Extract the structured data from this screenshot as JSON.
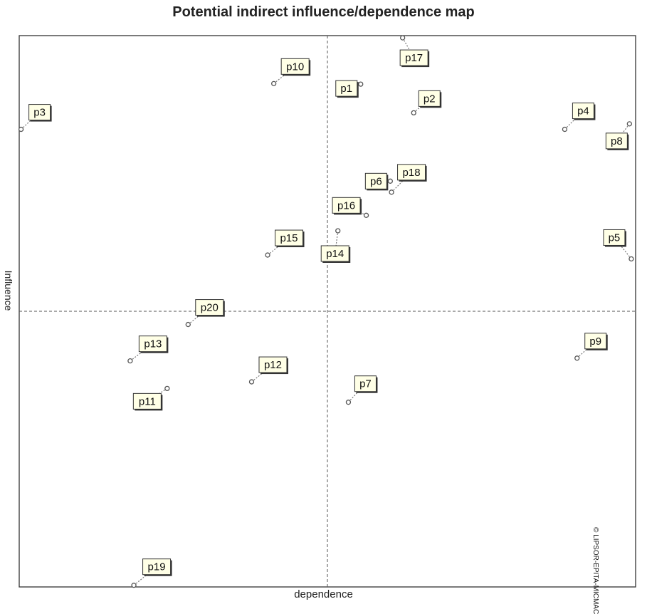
{
  "chart_data": {
    "type": "scatter",
    "title": "Potential indirect influence/dependence map",
    "xlabel": "dependence",
    "ylabel": "Influence",
    "copyright": "© LIPSOR-EPITA-MICMAC",
    "xlim": [
      0,
      100
    ],
    "ylim": [
      0,
      100
    ],
    "grid": false,
    "quadrant_lines": {
      "x": 50,
      "y": 50
    },
    "points": [
      {
        "label": "p1",
        "x": 55.4,
        "y": 91.2
      },
      {
        "label": "p2",
        "x": 64.0,
        "y": 86.0
      },
      {
        "label": "p3",
        "x": 0.3,
        "y": 83.0
      },
      {
        "label": "p4",
        "x": 88.5,
        "y": 83.0
      },
      {
        "label": "p5",
        "x": 99.3,
        "y": 59.5
      },
      {
        "label": "p6",
        "x": 60.2,
        "y": 73.6
      },
      {
        "label": "p7",
        "x": 53.4,
        "y": 33.5
      },
      {
        "label": "p8",
        "x": 99.0,
        "y": 84.0
      },
      {
        "label": "p9",
        "x": 90.5,
        "y": 41.5
      },
      {
        "label": "p10",
        "x": 41.3,
        "y": 91.3
      },
      {
        "label": "p11",
        "x": 24.0,
        "y": 36.0
      },
      {
        "label": "p12",
        "x": 37.7,
        "y": 37.2
      },
      {
        "label": "p13",
        "x": 18.0,
        "y": 41.0
      },
      {
        "label": "p14",
        "x": 51.7,
        "y": 64.6
      },
      {
        "label": "p15",
        "x": 40.3,
        "y": 60.2
      },
      {
        "label": "p16",
        "x": 56.3,
        "y": 67.4
      },
      {
        "label": "p17",
        "x": 62.2,
        "y": 99.6
      },
      {
        "label": "p18",
        "x": 60.4,
        "y": 71.6
      },
      {
        "label": "p19",
        "x": 18.6,
        "y": 0.3
      },
      {
        "label": "p20",
        "x": 27.4,
        "y": 47.6
      }
    ]
  }
}
